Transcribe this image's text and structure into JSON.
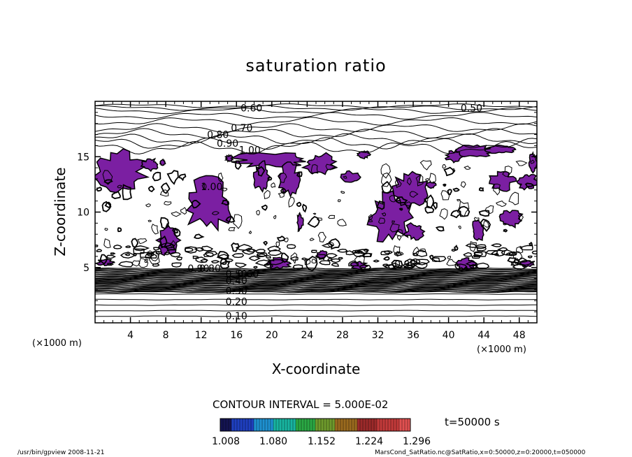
{
  "chart_data": {
    "type": "contour",
    "title": "saturation ratio",
    "xlabel": "X-coordinate",
    "ylabel": "Z-coordinate",
    "x_unit": "(×1000 m)",
    "y_unit": "(×1000 m)",
    "xlim": [
      0,
      50
    ],
    "ylim": [
      0,
      20
    ],
    "x_ticks": [
      4,
      8,
      12,
      16,
      20,
      24,
      28,
      32,
      36,
      40,
      44,
      48
    ],
    "y_ticks": [
      5,
      10,
      15
    ],
    "contour_interval_text": "CONTOUR INTERVAL = 5.000E-02",
    "time_text": "t=50000 s",
    "contour_labels": [
      {
        "text": "0.60",
        "x": 17.7,
        "z": 19.1
      },
      {
        "text": "0.50",
        "x": 42.6,
        "z": 19.1
      },
      {
        "text": "0.70",
        "x": 16.6,
        "z": 17.3
      },
      {
        "text": "0.80",
        "x": 13.9,
        "z": 16.7
      },
      {
        "text": "0.90",
        "x": 15.0,
        "z": 15.9
      },
      {
        "text": "1.00",
        "x": 17.5,
        "z": 15.3
      },
      {
        "text": "1.00",
        "x": 13.2,
        "z": 12.0
      },
      {
        "text": "0.90",
        "x": 11.7,
        "z": 4.6
      },
      {
        "text": "0.80",
        "x": 13.0,
        "z": 4.6
      },
      {
        "text": "0.40",
        "x": 16.0,
        "z": 3.5
      },
      {
        "text": "0.30",
        "x": 16.0,
        "z": 2.6
      },
      {
        "text": "0.20",
        "x": 16.0,
        "z": 1.6
      },
      {
        "text": "0.10",
        "x": 16.0,
        "z": 0.3
      },
      {
        "text": "0.90",
        "x": 35.1,
        "z": 5.0
      },
      {
        "text": "0.50",
        "x": 16.0,
        "z": 4.1
      },
      {
        "text": "0.60",
        "x": 17.3,
        "z": 4.1
      }
    ],
    "shaded_threshold": 1.0,
    "shade_color": "#7b1fa2",
    "regions": [
      {
        "x": [
          0.2,
          5.4
        ],
        "z": [
          12.0,
          15.3
        ]
      },
      {
        "x": [
          5.4,
          7.0
        ],
        "z": [
          13.8,
          14.8
        ]
      },
      {
        "x": [
          7.4,
          7.9
        ],
        "z": [
          14.2,
          14.7
        ]
      },
      {
        "x": [
          10.5,
          15.3
        ],
        "z": [
          8.6,
          12.8
        ]
      },
      {
        "x": [
          14.8,
          15.6
        ],
        "z": [
          14.6,
          15.1
        ]
      },
      {
        "x": [
          16.2,
          23.8
        ],
        "z": [
          14.1,
          15.3
        ]
      },
      {
        "x": [
          18.1,
          19.6
        ],
        "z": [
          12.0,
          14.4
        ]
      },
      {
        "x": [
          20.8,
          23.1
        ],
        "z": [
          11.6,
          14.2
        ]
      },
      {
        "x": [
          22.9,
          23.5
        ],
        "z": [
          8.3,
          9.8
        ]
      },
      {
        "x": [
          23.9,
          27.0
        ],
        "z": [
          13.4,
          15.2
        ]
      },
      {
        "x": [
          28.0,
          29.8
        ],
        "z": [
          12.7,
          13.6
        ]
      },
      {
        "x": [
          29.8,
          31.0
        ],
        "z": [
          14.9,
          15.5
        ]
      },
      {
        "x": [
          31.3,
          35.5
        ],
        "z": [
          7.4,
          11.6
        ]
      },
      {
        "x": [
          33.9,
          37.4
        ],
        "z": [
          10.4,
          13.4
        ]
      },
      {
        "x": [
          35.2,
          37.1
        ],
        "z": [
          7.6,
          8.9
        ]
      },
      {
        "x": [
          37.6,
          38.6
        ],
        "z": [
          12.2,
          12.7
        ]
      },
      {
        "x": [
          39.8,
          41.6
        ],
        "z": [
          14.5,
          15.5
        ]
      },
      {
        "x": [
          41.2,
          44.8
        ],
        "z": [
          15.0,
          16.0
        ]
      },
      {
        "x": [
          44.4,
          47.3
        ],
        "z": [
          15.3,
          16.0
        ]
      },
      {
        "x": [
          42.7,
          44.0
        ],
        "z": [
          7.5,
          9.3
        ]
      },
      {
        "x": [
          45.9,
          48.2
        ],
        "z": [
          8.7,
          10.1
        ]
      },
      {
        "x": [
          44.8,
          47.3
        ],
        "z": [
          12.0,
          13.6
        ]
      },
      {
        "x": [
          48.0,
          50.0
        ],
        "z": [
          12.1,
          13.4
        ]
      },
      {
        "x": [
          49.2,
          50.0
        ],
        "z": [
          13.6,
          15.3
        ]
      },
      {
        "x": [
          0.3,
          2.1
        ],
        "z": [
          5.2,
          5.7
        ]
      },
      {
        "x": [
          7.2,
          9.5
        ],
        "z": [
          6.3,
          8.6
        ]
      },
      {
        "x": [
          19.5,
          21.9
        ],
        "z": [
          4.9,
          5.8
        ]
      },
      {
        "x": [
          25.2,
          26.2
        ],
        "z": [
          5.7,
          6.5
        ]
      },
      {
        "x": [
          29.0,
          30.6
        ],
        "z": [
          4.9,
          5.5
        ]
      },
      {
        "x": [
          40.8,
          42.9
        ],
        "z": [
          4.9,
          5.8
        ]
      },
      {
        "x": [
          48.0,
          49.8
        ],
        "z": [
          5.1,
          5.6
        ]
      }
    ],
    "colorbar": {
      "ticks": [
        "1.008",
        "1.080",
        "1.152",
        "1.224",
        "1.296"
      ],
      "colors": [
        "#141452",
        "#1f3fbf",
        "#1e90d0",
        "#18b4a0",
        "#2aa844",
        "#6e9a2c",
        "#9a6a1e",
        "#9c2a2a",
        "#c23a3a",
        "#e05050"
      ]
    }
  },
  "footer": {
    "left": "/usr/bin/gpview  2008-11-21",
    "right": "MarsCond_SatRatio.nc@SatRatio,x=0:50000,z=0:20000,t=050000"
  }
}
